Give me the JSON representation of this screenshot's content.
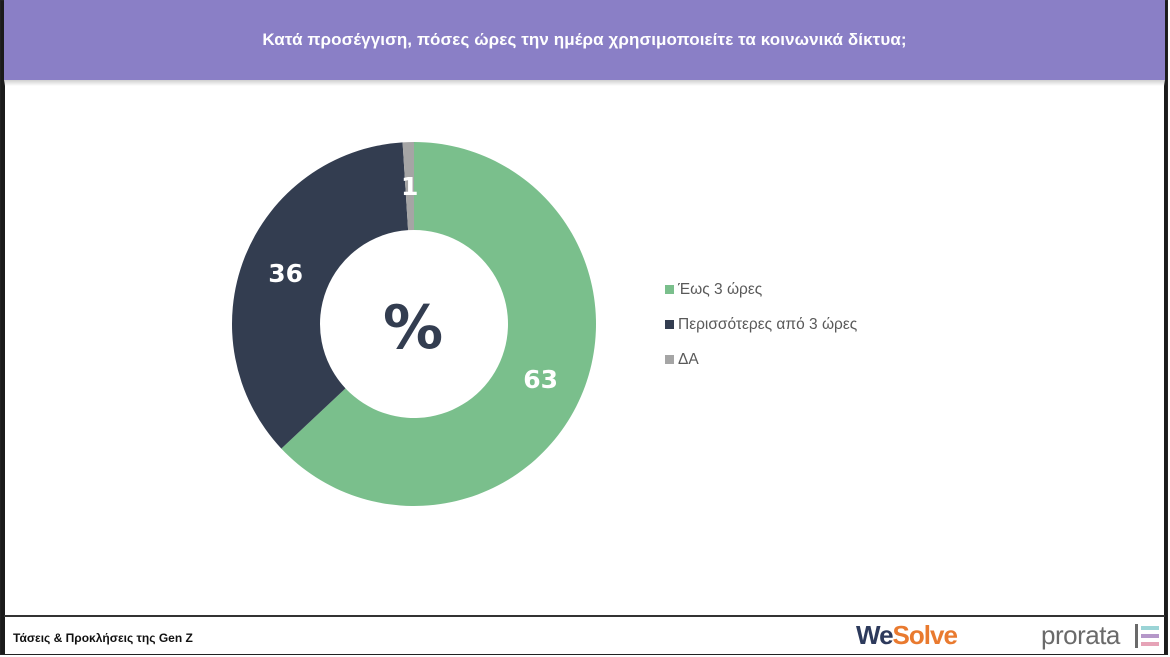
{
  "header": {
    "title": "Κατά προσέγγιση, πόσες ώρες την ημέρα χρησιμοποιείτε τα κοινωνικά δίκτυα;"
  },
  "chart_data": {
    "type": "pie",
    "title": "Κατά προσέγγιση, πόσες ώρες την ημέρα χρησιμοποιείτε τα κοινωνικά δίκτυα;",
    "center_label": "%",
    "series": [
      {
        "name": "Έως 3 ώρες",
        "value": 63,
        "label": "63",
        "color": "#7abf8c"
      },
      {
        "name": "Περισσότερες από 3 ώρες",
        "value": 36,
        "label": "36",
        "color": "#333d50"
      },
      {
        "name": "ΔΑ",
        "value": 1,
        "label": "1",
        "color": "#a5a5a5"
      }
    ],
    "legend_position": "right"
  },
  "footer": {
    "text": "Τάσεις & Προκλήσεις της Gen Z",
    "logo_wesolve_we": "We",
    "logo_wesolve_solve": "Solve",
    "logo_prorata": "prorata"
  }
}
